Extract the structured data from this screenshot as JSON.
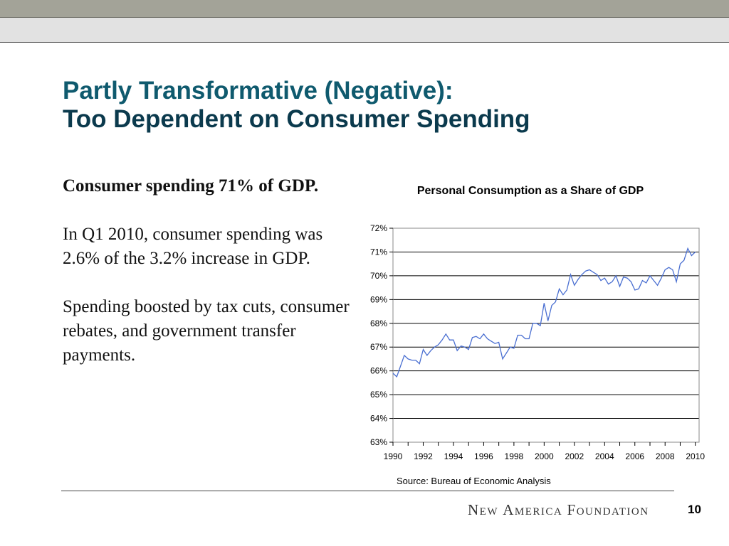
{
  "slide": {
    "title_line1": "Partly Transformative (Negative):",
    "title_line2": "Too Dependent on Consumer Spending",
    "bullets": [
      {
        "text": "Consumer spending 71% of GDP.",
        "bold": true
      },
      {
        "text": "In Q1 2010, consumer spending was 2.6% of the 3.2% increase in GDP.",
        "bold": false
      },
      {
        "text": "Spending boosted by tax cuts, consumer rebates, and government transfer payments.",
        "bold": false
      }
    ],
    "source": "Source: Bureau of Economic Analysis",
    "brand": "New America Foundation",
    "page_number": "10"
  },
  "colors": {
    "title_primary": "#0f5a6e",
    "title_secondary": "#0b3a4d",
    "line_series": "#4a6fd1"
  },
  "chart_data": {
    "type": "line",
    "title": "Personal Consumption as a Share of GDP",
    "xlabel": "",
    "ylabel": "",
    "ylim": [
      63,
      72
    ],
    "xlim": [
      1990,
      2010.25
    ],
    "yticks": [
      63,
      64,
      65,
      66,
      67,
      68,
      69,
      70,
      71,
      72
    ],
    "ytick_labels": [
      "63%",
      "64%",
      "65%",
      "66%",
      "67%",
      "68%",
      "69%",
      "70%",
      "71%",
      "72%"
    ],
    "xticks": [
      1990,
      1992,
      1994,
      1996,
      1998,
      2000,
      2002,
      2004,
      2006,
      2008,
      2010
    ],
    "xtick_labels": [
      "1990",
      "1992",
      "1994",
      "1996",
      "1998",
      "2000",
      "2002",
      "2004",
      "2006",
      "2008",
      "2010"
    ],
    "grid": "horizontal",
    "legend": "none",
    "series": [
      {
        "x": [
          1990.0,
          1990.25,
          1990.5,
          1990.75,
          1991.0,
          1991.25,
          1991.5,
          1991.75,
          1992.0,
          1992.25,
          1992.5,
          1992.75,
          1993.0,
          1993.25,
          1993.5,
          1993.75,
          1994.0,
          1994.25,
          1994.5,
          1994.75,
          1995.0,
          1995.25,
          1995.5,
          1995.75,
          1996.0,
          1996.25,
          1996.5,
          1996.75,
          1997.0,
          1997.25,
          1997.5,
          1997.75,
          1998.0,
          1998.25,
          1998.5,
          1998.75,
          1999.0,
          1999.25,
          1999.5,
          1999.75,
          2000.0,
          2000.25,
          2000.5,
          2000.75,
          2001.0,
          2001.25,
          2001.5,
          2001.75,
          2002.0,
          2002.25,
          2002.5,
          2002.75,
          2003.0,
          2003.25,
          2003.5,
          2003.75,
          2004.0,
          2004.25,
          2004.5,
          2004.75,
          2005.0,
          2005.25,
          2005.5,
          2005.75,
          2006.0,
          2006.25,
          2006.5,
          2006.75,
          2007.0,
          2007.25,
          2007.5,
          2007.75,
          2008.0,
          2008.25,
          2008.5,
          2008.75,
          2009.0,
          2009.25,
          2009.5,
          2009.75,
          2010.0
        ],
        "y": [
          65.9,
          65.75,
          66.2,
          66.65,
          66.5,
          66.45,
          66.45,
          66.3,
          66.9,
          66.65,
          66.85,
          67.0,
          67.1,
          67.3,
          67.55,
          67.3,
          67.3,
          66.85,
          67.05,
          67.0,
          66.9,
          67.4,
          67.45,
          67.35,
          67.55,
          67.35,
          67.25,
          67.15,
          67.2,
          66.5,
          66.75,
          67.0,
          66.95,
          67.5,
          67.5,
          67.35,
          67.35,
          68.0,
          68.0,
          67.9,
          68.85,
          68.1,
          68.75,
          68.9,
          69.45,
          69.2,
          69.4,
          70.05,
          69.6,
          69.85,
          70.05,
          70.2,
          70.25,
          70.15,
          70.05,
          69.8,
          69.9,
          69.65,
          69.75,
          70.0,
          69.55,
          69.95,
          69.9,
          69.75,
          69.4,
          69.45,
          69.8,
          69.7,
          70.0,
          69.8,
          69.6,
          69.9,
          70.25,
          70.35,
          70.25,
          69.75,
          70.5,
          70.65,
          71.15,
          70.85,
          71.0
        ]
      }
    ]
  }
}
